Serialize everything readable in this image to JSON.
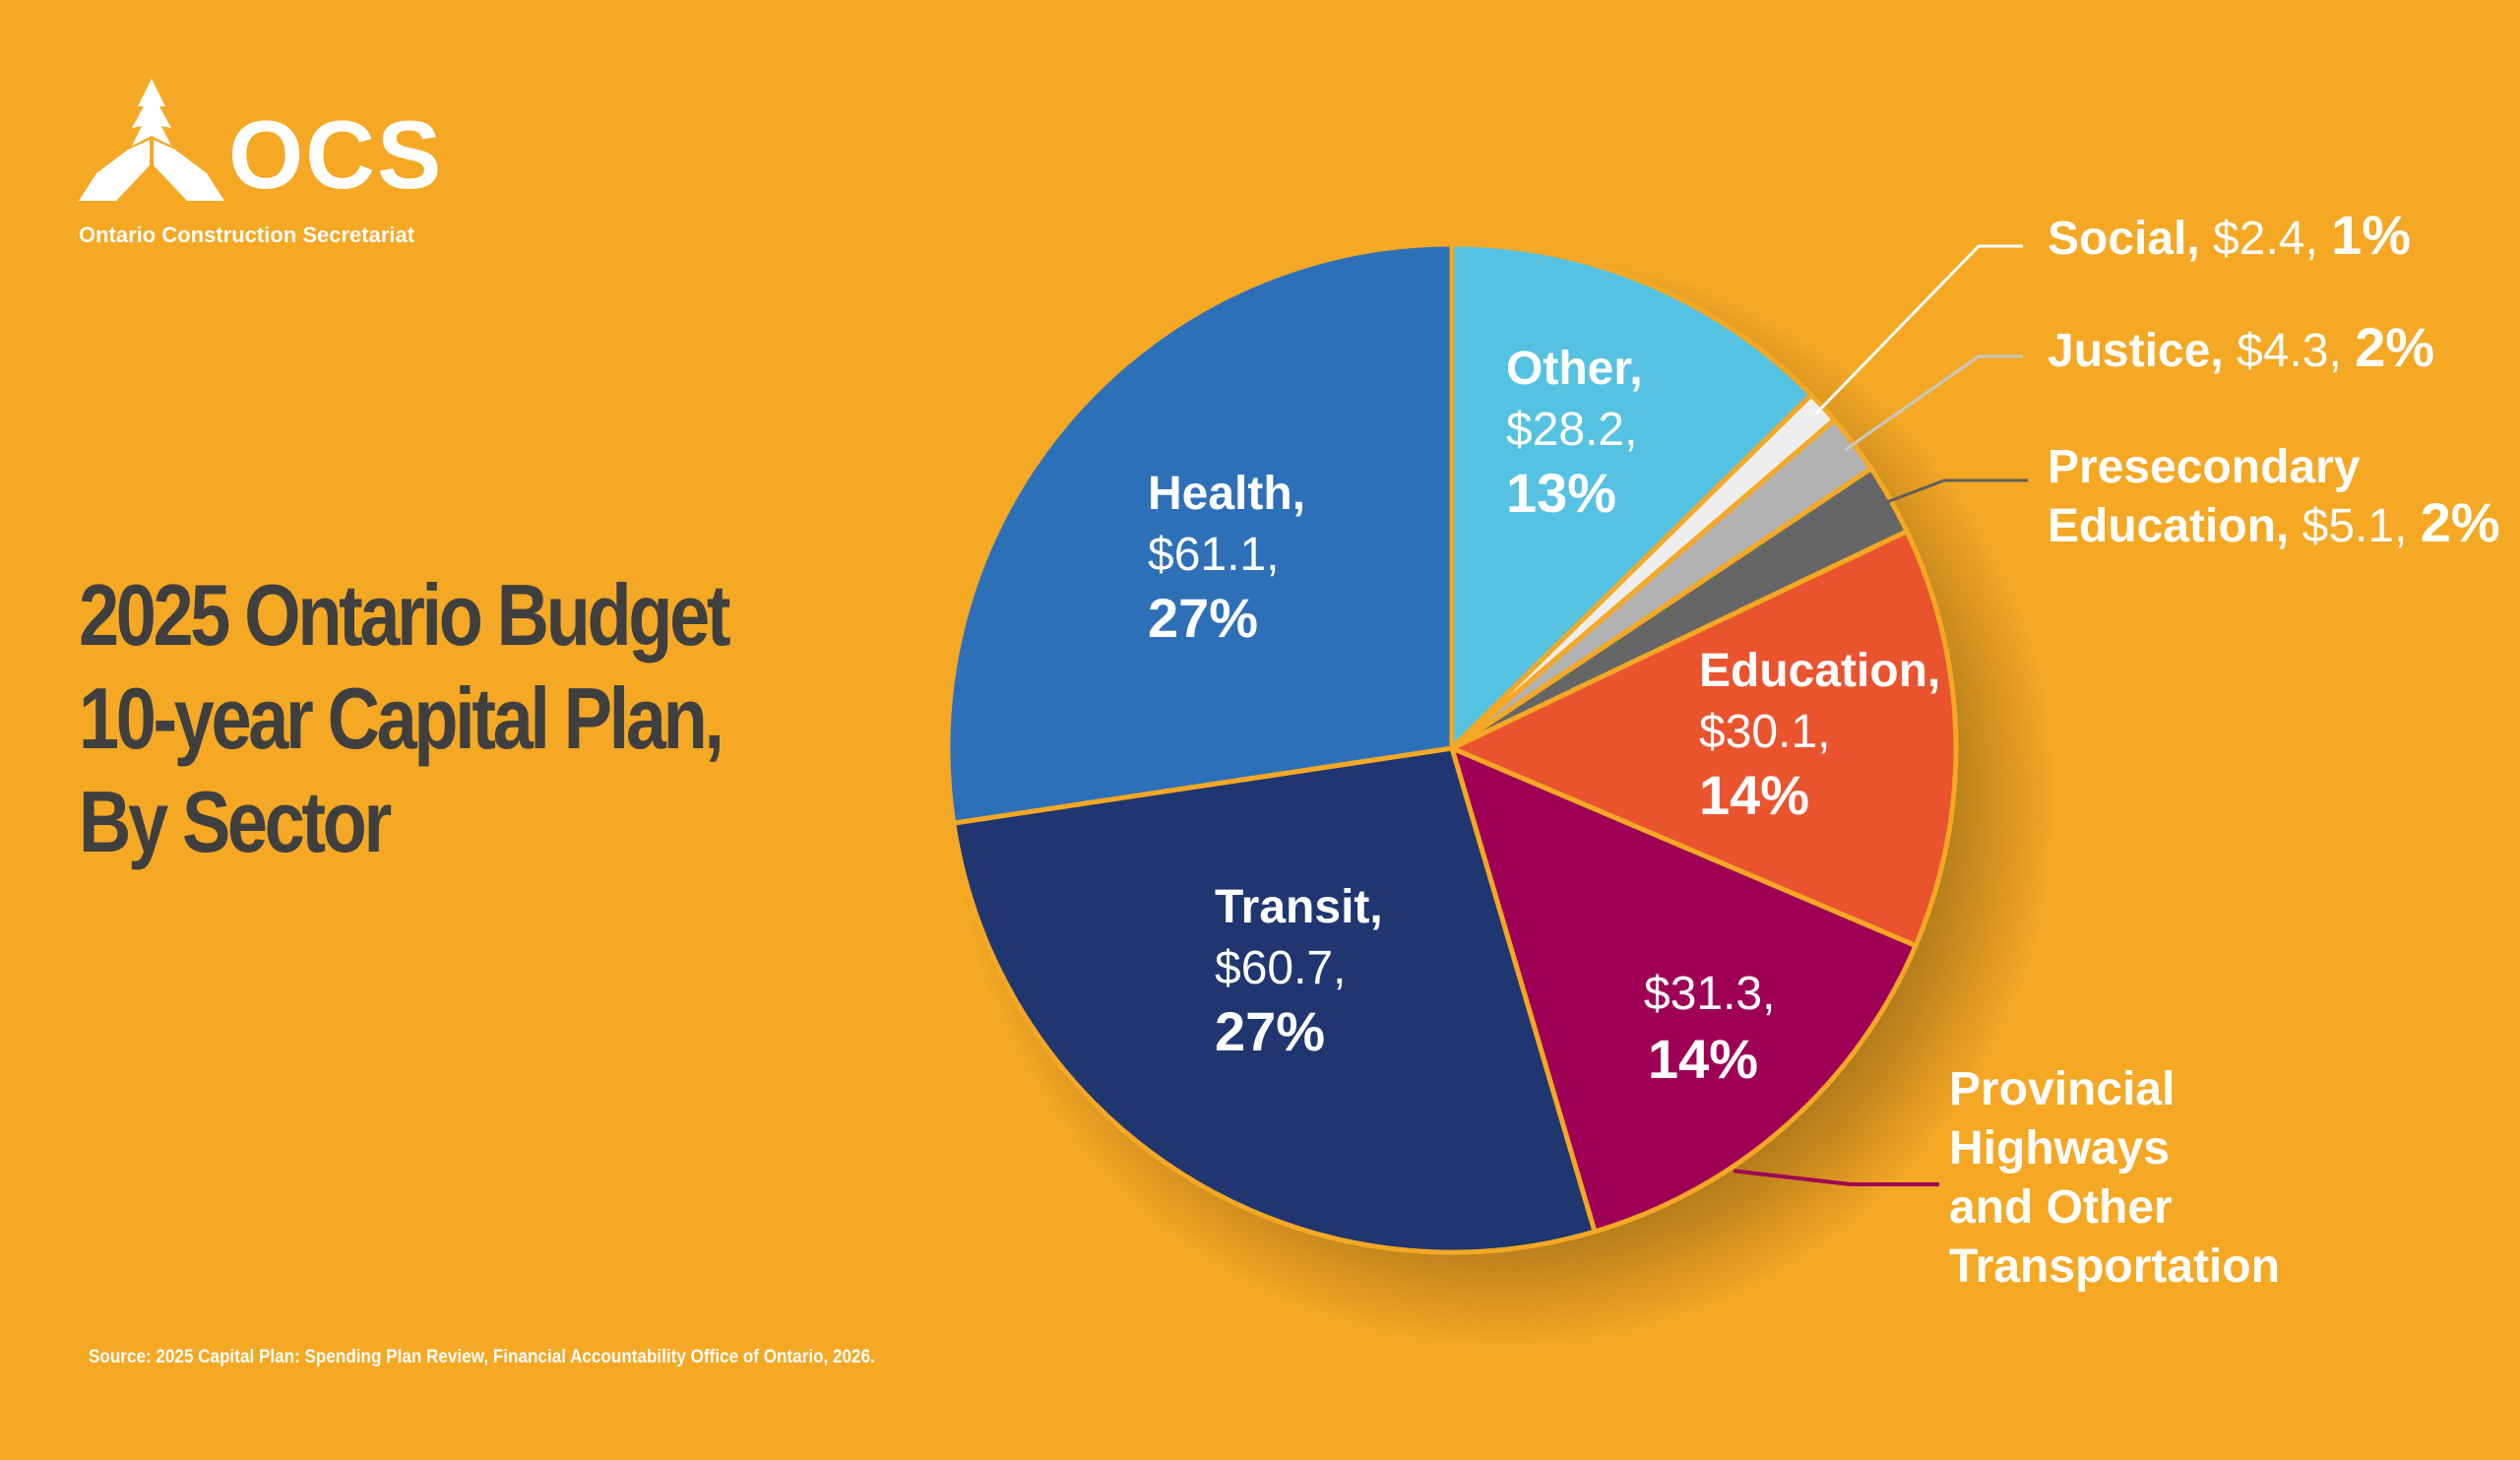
{
  "logo": {
    "wordmark": "OCS",
    "subtitle": "Ontario Construction Secretariat"
  },
  "title": {
    "line1": "2025 Ontario Budget",
    "line2": "10-year Capital Plan,",
    "line3": "By Sector"
  },
  "source": "Source: 2025 Capital Plan: Spending Plan Review, Financial Accountability Office of Ontario, 2026.",
  "colors": {
    "background": "#F4A824",
    "slice_border": "#F4A824",
    "title": "#3F3F3F",
    "label_white": "#FFFFFF"
  },
  "chart_data": {
    "type": "pie",
    "title": "2025 Ontario Budget 10-year Capital Plan, By Sector",
    "value_unit": "$ billions",
    "start_angle_deg": 0,
    "direction": "clockwise",
    "slices": [
      {
        "id": "other",
        "name": "Other",
        "value": 28.2,
        "value_text": "$28.2",
        "percent": 13,
        "percent_text": "13%",
        "color": "#56C2E2",
        "label_placement": "inside",
        "label_lines": [
          "Other,",
          "$28.2,",
          "13%"
        ]
      },
      {
        "id": "social",
        "name": "Social",
        "value": 2.4,
        "value_text": "$2.4",
        "percent": 1,
        "percent_text": "1%",
        "color": "#EEEEEE",
        "label_placement": "callout-right",
        "leader_color": "#FFFFFF",
        "label_lines": [
          "Social,",
          "$2.4,",
          "1%"
        ]
      },
      {
        "id": "justice",
        "name": "Justice",
        "value": 4.3,
        "value_text": "$4.3",
        "percent": 2,
        "percent_text": "2%",
        "color": "#B1B1B1",
        "label_placement": "callout-right",
        "leader_color": "#C8C8C8",
        "label_lines": [
          "Justice,",
          "$4.3,",
          "2%"
        ]
      },
      {
        "id": "postsecondary",
        "name": "Presecondary Education",
        "value": 5.1,
        "value_text": "$5.1",
        "percent": 2,
        "percent_text": "2%",
        "color": "#666666",
        "label_placement": "callout-right",
        "leader_color": "#5E5E5E",
        "label_lines": [
          "Presecondary",
          "Education,",
          "$5.1,",
          "2%"
        ]
      },
      {
        "id": "education",
        "name": "Education",
        "value": 30.1,
        "value_text": "$30.1",
        "percent": 14,
        "percent_text": "14%",
        "color": "#E9542F",
        "label_placement": "inside",
        "label_lines": [
          "Education,",
          "$30.1,",
          "14%"
        ]
      },
      {
        "id": "highways",
        "name": "Provincial Highways and Other Transportation",
        "value": 31.3,
        "value_text": "$31.3",
        "percent": 14,
        "percent_text": "14%",
        "color": "#9E0055",
        "label_placement": "inside-values-callout-name",
        "leader_color": "#9E0055",
        "label_lines": [
          "$31.3,",
          "14%"
        ],
        "callout_lines": [
          "Provincial",
          "Highways",
          "and Other",
          "Transportation"
        ]
      },
      {
        "id": "transit",
        "name": "Transit",
        "value": 60.7,
        "value_text": "$60.7",
        "percent": 27,
        "percent_text": "27%",
        "color": "#1F3670",
        "label_placement": "inside",
        "label_lines": [
          "Transit,",
          "$60.7,",
          "27%"
        ]
      },
      {
        "id": "health",
        "name": "Health",
        "value": 61.1,
        "value_text": "$61.1",
        "percent": 27,
        "percent_text": "27%",
        "color": "#2E70B8",
        "label_placement": "inside",
        "label_lines": [
          "Health,",
          "$61.1,",
          "27%"
        ]
      }
    ]
  }
}
